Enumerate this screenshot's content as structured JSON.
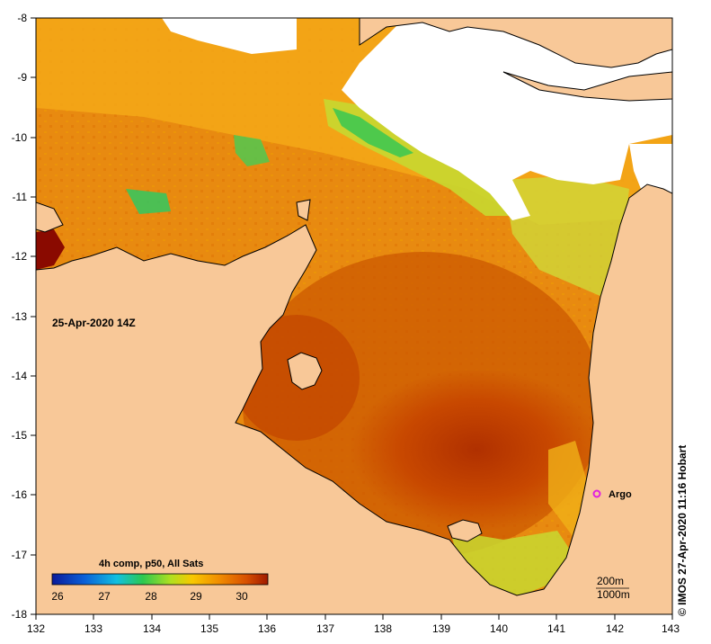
{
  "map": {
    "timestamp": "25-Apr-2020 14Z",
    "credit": "© IMOS 27-Apr-2020 11:16 Hobart",
    "longitude_ticks": [
      "132",
      "133",
      "134",
      "135",
      "136",
      "137",
      "138",
      "139",
      "140",
      "141",
      "142",
      "143"
    ],
    "latitude_ticks": [
      "-8",
      "-9",
      "-10",
      "-11",
      "-12",
      "-13",
      "-14",
      "-15",
      "-16",
      "-17",
      "-18"
    ],
    "legend": {
      "title": "4h comp, p50, All Sats",
      "ticks": [
        "26",
        "27",
        "28",
        "29",
        "30"
      ],
      "stops": [
        "#0a1a9a",
        "#0a60d8",
        "#12c0e0",
        "#2cc850",
        "#b0e020",
        "#f8c800",
        "#f08a00",
        "#d85000",
        "#a01a00"
      ]
    },
    "depth_labels": [
      "200m",
      "1000m"
    ],
    "argo": {
      "label": "Argo",
      "color": "#e020e0"
    },
    "colors": {
      "land": "#f8c898",
      "no_data": "#ffffff",
      "warm": "#c04a00",
      "hot": "#8a0a00",
      "mid": "#e88a10",
      "cool": "#c8e040",
      "cold": "#30c850"
    }
  }
}
